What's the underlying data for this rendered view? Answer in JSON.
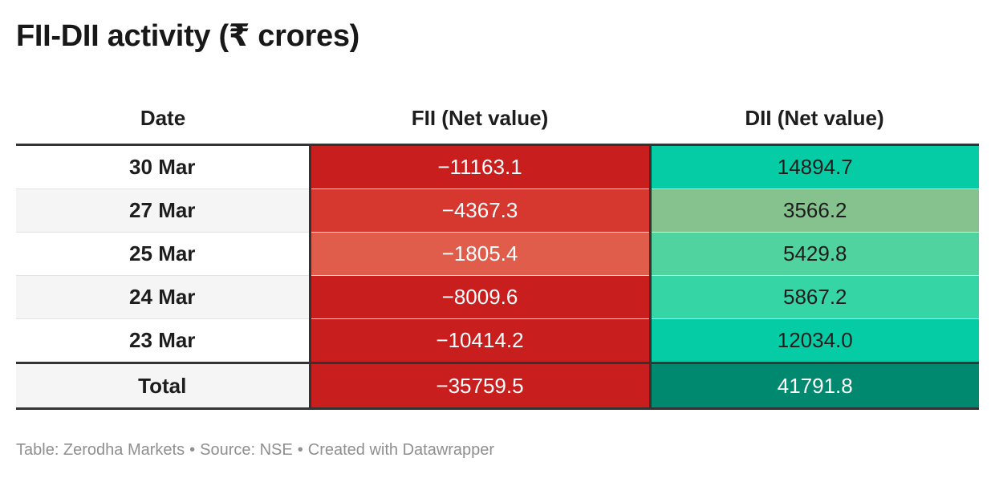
{
  "title": "FII-DII activity (₹ crores)",
  "footer": {
    "table_credit": "Table: Zerodha Markets",
    "source": "Source: NSE",
    "created": "Created with Datawrapper",
    "separator": "•"
  },
  "colors": {
    "fii_strong": "#c81e1e",
    "fii_mid": "#d6372e",
    "fii_light": "#e05d4b",
    "dii_strong": "#06cca5",
    "dii_mid": "#36d5a5",
    "dii_light": "#50d39e",
    "dii_pale": "#85c28d",
    "dii_total": "#00896f"
  },
  "chart_data": {
    "type": "table",
    "title": "FII-DII activity (₹ crores)",
    "columns": [
      "Date",
      "FII (Net value)",
      "DII (Net value)"
    ],
    "rows": [
      {
        "date": "30 Mar",
        "fii": "−11163.1",
        "dii": "14894.7",
        "fii_value": -11163.1,
        "dii_value": 14894.7,
        "fii_color": "#c81e1e",
        "dii_color": "#06cca5",
        "fii_text": "#ffffff",
        "dii_text": "#1d1d1d"
      },
      {
        "date": "27 Mar",
        "fii": "−4367.3",
        "dii": "3566.2",
        "fii_value": -4367.3,
        "dii_value": 3566.2,
        "fii_color": "#d6372e",
        "dii_color": "#85c28d",
        "fii_text": "#ffffff",
        "dii_text": "#1d1d1d"
      },
      {
        "date": "25 Mar",
        "fii": "−1805.4",
        "dii": "5429.8",
        "fii_value": -1805.4,
        "dii_value": 5429.8,
        "fii_color": "#e05d4b",
        "dii_color": "#50d39e",
        "fii_text": "#ffffff",
        "dii_text": "#1d1d1d"
      },
      {
        "date": "24 Mar",
        "fii": "−8009.6",
        "dii": "5867.2",
        "fii_value": -8009.6,
        "dii_value": 5867.2,
        "fii_color": "#c81e1e",
        "dii_color": "#36d5a5",
        "fii_text": "#ffffff",
        "dii_text": "#1d1d1d"
      },
      {
        "date": "23 Mar",
        "fii": "−10414.2",
        "dii": "12034.0",
        "fii_value": -10414.2,
        "dii_value": 12034.0,
        "fii_color": "#c81e1e",
        "dii_color": "#06cca5",
        "fii_text": "#ffffff",
        "dii_text": "#1d1d1d"
      }
    ],
    "total": {
      "date": "Total",
      "fii": "−35759.5",
      "dii": "41791.8",
      "fii_value": -35759.5,
      "dii_value": 41791.8,
      "fii_color": "#c81e1e",
      "dii_color": "#00896f",
      "fii_text": "#ffffff",
      "dii_text": "#ffffff"
    }
  }
}
